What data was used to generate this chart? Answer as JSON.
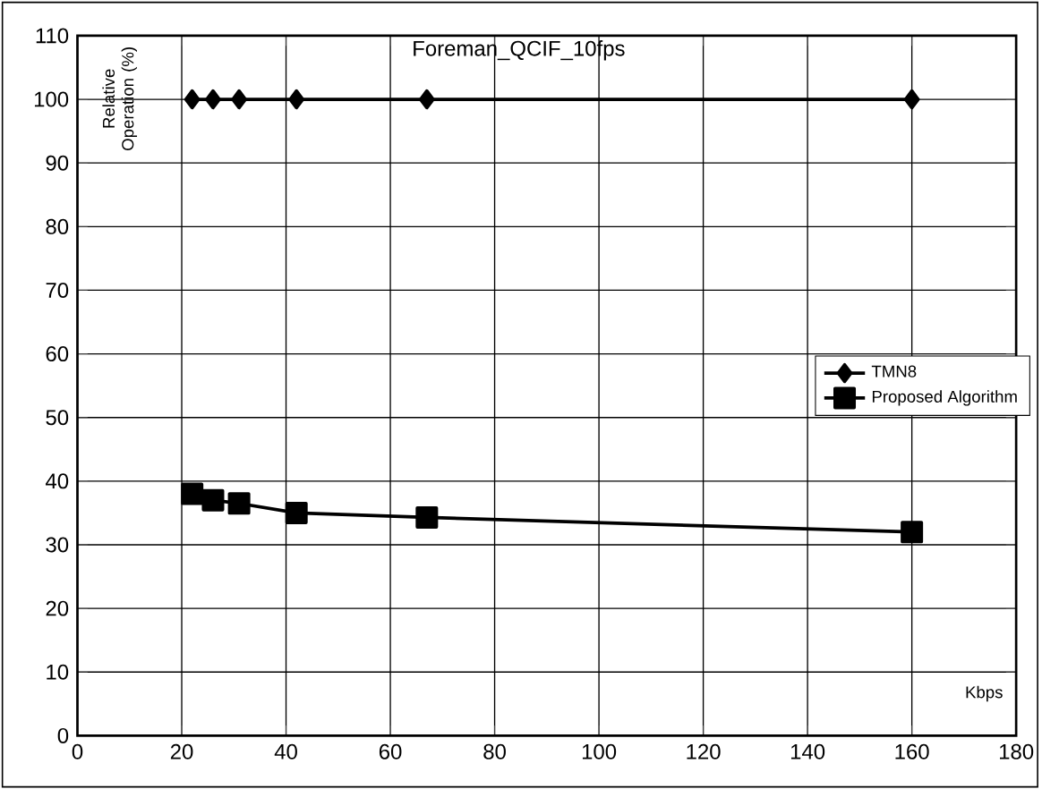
{
  "chart_data": {
    "type": "line",
    "title": "Foreman_QCIF_10fps",
    "xlabel": "Kbps",
    "ylabel": "Relative Operation (%)",
    "xlim": [
      0,
      180
    ],
    "ylim": [
      0,
      110
    ],
    "xticks": [
      0,
      20,
      40,
      60,
      80,
      100,
      120,
      140,
      160,
      180
    ],
    "yticks": [
      0,
      10,
      20,
      30,
      40,
      50,
      60,
      70,
      80,
      90,
      100,
      110
    ],
    "grid": true,
    "legend": "right",
    "line_style": "solid",
    "series": [
      {
        "name": "TMN8",
        "color": "#000000",
        "marker": "diamond",
        "x": [
          22,
          26,
          31,
          42,
          67,
          160
        ],
        "values": [
          100,
          100,
          100,
          100,
          100,
          100
        ]
      },
      {
        "name": "Proposed Algorithm",
        "color": "#000000",
        "marker": "square",
        "x": [
          22,
          26,
          31,
          42,
          67,
          160
        ],
        "values": [
          38,
          37,
          36.5,
          35,
          34.3,
          32
        ]
      }
    ]
  }
}
